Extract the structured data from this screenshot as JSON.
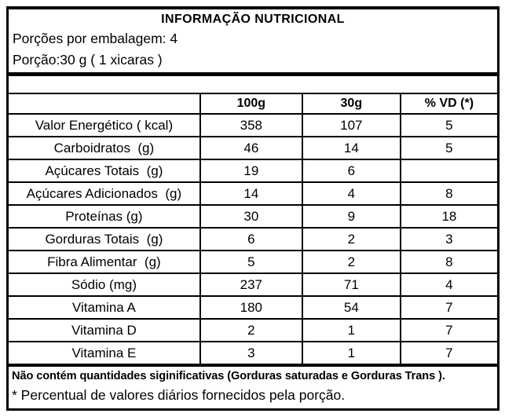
{
  "label": {
    "title": "INFORMAÇÃO NUTRICIONAL",
    "servings_line": "Porções por embalagem: 4",
    "portion_line": "Porção:30 g ( 1 xicaras )"
  },
  "table": {
    "headers": [
      "",
      "100g",
      "30g",
      "% VD (*)"
    ],
    "rows": [
      {
        "label": "Valor Energético ( kcal)",
        "per100g": "358",
        "per30g": "107",
        "vd": "5"
      },
      {
        "label": "Carboidratos  (g)",
        "per100g": "46",
        "per30g": "14",
        "vd": "5"
      },
      {
        "label": "Açúcares Totais  (g)",
        "per100g": "19",
        "per30g": "6",
        "vd": ""
      },
      {
        "label": "Açúcares Adicionados  (g)",
        "per100g": "14",
        "per30g": "4",
        "vd": "8"
      },
      {
        "label": "Proteínas (g)",
        "per100g": "30",
        "per30g": "9",
        "vd": "18"
      },
      {
        "label": "Gorduras Totais  (g)",
        "per100g": "6",
        "per30g": "2",
        "vd": "3"
      },
      {
        "label": "Fibra Alimentar  (g)",
        "per100g": "5",
        "per30g": "2",
        "vd": "8"
      },
      {
        "label": "Sódio (mg)",
        "per100g": "237",
        "per30g": "71",
        "vd": "4"
      },
      {
        "label": "Vitamina A",
        "per100g": "180",
        "per30g": "54",
        "vd": "7"
      },
      {
        "label": "Vitamina D",
        "per100g": "2",
        "per30g": "1",
        "vd": "7"
      },
      {
        "label": "Vitamina E",
        "per100g": "3",
        "per30g": "1",
        "vd": "7"
      }
    ]
  },
  "footnotes": {
    "no_significant": "Não contém quantidades siginificativas (Gorduras saturadas e Gorduras Trans ).",
    "daily_values": "* Percentual de valores diários fornecidos pela porção."
  },
  "colors": {
    "border": "#000000",
    "text": "#000000",
    "background": "#ffffff"
  }
}
